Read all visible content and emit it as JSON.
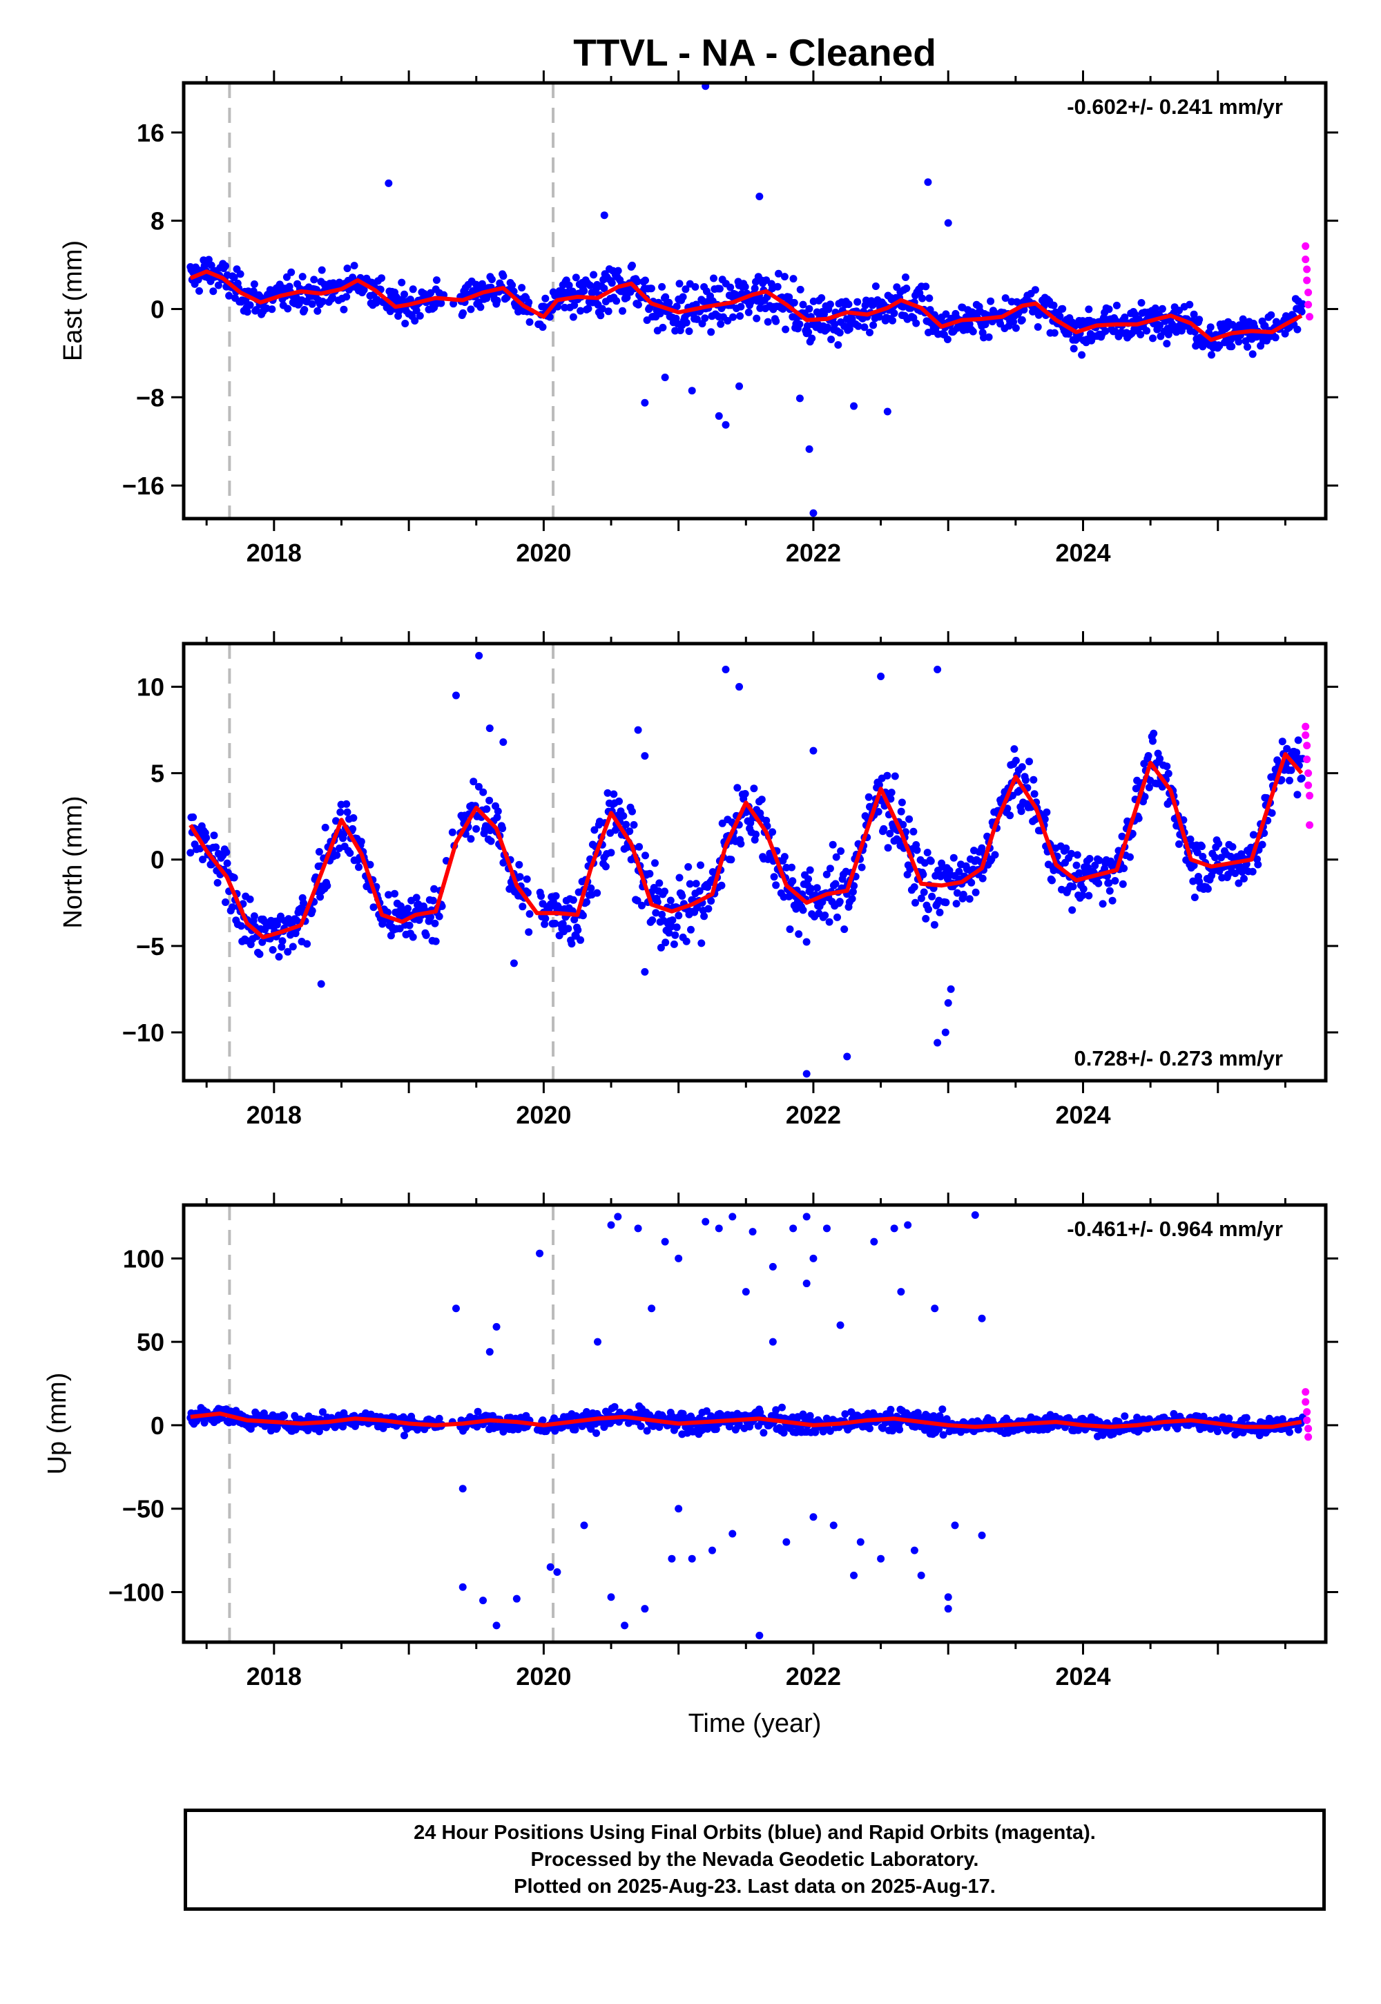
{
  "title": "TTVL  - NA - Cleaned",
  "colors": {
    "final": "#0000ff",
    "rapid": "#ff00ff",
    "fit": "#ff0000",
    "event": "#bbbbbb"
  },
  "footer": {
    "line1": "24 Hour Positions Using Final Orbits (blue) and Rapid Orbits (magenta).",
    "line2": "Processed by the Nevada Geodetic Laboratory.",
    "line3": "Plotted on 2025-Aug-23. Last data on 2025-Aug-17."
  },
  "chart_data": [
    {
      "type": "scatter",
      "component": "east",
      "ylabel": "East (mm)",
      "xlim": [
        2017.33,
        2025.8
      ],
      "ylim": [
        -19,
        20.5
      ],
      "xticks": [
        2018,
        2020,
        2022,
        2024
      ],
      "yticks": [
        -16,
        -8,
        0,
        8,
        16
      ],
      "rate": "-0.602+/- 0.241 mm/yr",
      "rate_position": "top-right",
      "event_lines": [
        2017.67,
        2020.07
      ],
      "fit": {
        "x": [
          2017.38,
          2017.5,
          2017.62,
          2017.75,
          2017.9,
          2018.05,
          2018.2,
          2018.35,
          2018.5,
          2018.62,
          2018.75,
          2018.9,
          2019.0,
          2019.2,
          2019.4,
          2019.55,
          2019.7,
          2019.85,
          2020.0,
          2020.1,
          2020.25,
          2020.4,
          2020.55,
          2020.65,
          2020.8,
          2021.0,
          2021.2,
          2021.4,
          2021.55,
          2021.65,
          2021.8,
          2021.95,
          2022.1,
          2022.25,
          2022.4,
          2022.55,
          2022.65,
          2022.8,
          2022.95,
          2023.1,
          2023.25,
          2023.4,
          2023.55,
          2023.65,
          2023.8,
          2023.95,
          2024.1,
          2024.25,
          2024.4,
          2024.55,
          2024.65,
          2024.8,
          2024.95,
          2025.1,
          2025.25,
          2025.4,
          2025.5,
          2025.62
        ],
        "y": [
          2.8,
          3.4,
          2.8,
          1.5,
          0.6,
          1.2,
          1.6,
          1.4,
          1.8,
          2.6,
          1.7,
          0.2,
          0.4,
          1.0,
          0.8,
          1.5,
          1.9,
          0.3,
          -0.7,
          0.8,
          1.1,
          1.0,
          2.0,
          2.3,
          0.5,
          -0.3,
          0.2,
          0.6,
          1.3,
          1.6,
          0.4,
          -1.0,
          -0.9,
          -0.3,
          -0.5,
          0.1,
          0.8,
          0.1,
          -1.6,
          -1.0,
          -0.9,
          -0.7,
          0.3,
          0.5,
          -1.0,
          -2.1,
          -1.5,
          -1.4,
          -1.4,
          -0.9,
          -0.6,
          -1.3,
          -2.8,
          -2.2,
          -2.0,
          -2.1,
          -1.4,
          -0.6
        ]
      },
      "outliers": [
        [
          2018.85,
          11.4
        ],
        [
          2020.75,
          -8.5
        ],
        [
          2021.3,
          -9.7
        ],
        [
          2021.35,
          -10.5
        ],
        [
          2021.45,
          -7.0
        ],
        [
          2021.6,
          10.2
        ],
        [
          2021.97,
          -12.7
        ],
        [
          2022.0,
          -18.5
        ],
        [
          2022.3,
          -8.8
        ],
        [
          2022.85,
          11.5
        ],
        [
          2023.0,
          7.8
        ],
        [
          2020.45,
          8.5
        ],
        [
          2021.1,
          -7.4
        ],
        [
          2020.9,
          -6.2
        ],
        [
          2021.9,
          -8.1
        ],
        [
          2022.55,
          -9.3
        ],
        [
          2021.2,
          20.2
        ]
      ],
      "rapid": [
        [
          2025.65,
          5.7
        ],
        [
          2025.65,
          4.5
        ],
        [
          2025.66,
          3.6
        ],
        [
          2025.66,
          2.6
        ],
        [
          2025.67,
          1.5
        ],
        [
          2025.67,
          0.4
        ],
        [
          2025.68,
          -0.7
        ]
      ]
    },
    {
      "type": "scatter",
      "component": "north",
      "ylabel": "North (mm)",
      "xlim": [
        2017.33,
        2025.8
      ],
      "ylim": [
        -12.8,
        12.5
      ],
      "xticks": [
        2018,
        2020,
        2022,
        2024
      ],
      "yticks": [
        -10,
        -5,
        0,
        5,
        10
      ],
      "rate": "0.728+/- 0.273 mm/yr",
      "rate_position": "bottom-right",
      "event_lines": [
        2017.67,
        2020.07
      ],
      "fit": {
        "x": [
          2017.38,
          2017.5,
          2017.65,
          2017.8,
          2017.92,
          2018.05,
          2018.2,
          2018.35,
          2018.5,
          2018.65,
          2018.8,
          2018.95,
          2019.05,
          2019.2,
          2019.35,
          2019.5,
          2019.65,
          2019.8,
          2019.95,
          2020.1,
          2020.25,
          2020.35,
          2020.5,
          2020.65,
          2020.8,
          2020.95,
          2021.1,
          2021.25,
          2021.35,
          2021.5,
          2021.65,
          2021.8,
          2021.95,
          2022.1,
          2022.25,
          2022.35,
          2022.5,
          2022.65,
          2022.8,
          2022.95,
          2023.1,
          2023.25,
          2023.35,
          2023.5,
          2023.65,
          2023.8,
          2023.95,
          2024.1,
          2024.25,
          2024.35,
          2024.5,
          2024.65,
          2024.8,
          2024.95,
          2025.1,
          2025.25,
          2025.35,
          2025.5,
          2025.62
        ],
        "y": [
          2.0,
          0.5,
          -1.0,
          -3.7,
          -4.5,
          -4.2,
          -3.8,
          -0.8,
          2.3,
          0.3,
          -3.2,
          -3.6,
          -3.2,
          -3.0,
          1.0,
          3.0,
          1.8,
          -1.5,
          -3.1,
          -3.1,
          -3.2,
          -0.5,
          2.7,
          0.9,
          -2.6,
          -3.0,
          -2.6,
          -2.0,
          0.8,
          3.3,
          1.6,
          -1.5,
          -2.5,
          -2.0,
          -1.8,
          0.6,
          4.1,
          1.6,
          -1.4,
          -1.5,
          -1.3,
          -0.5,
          2.0,
          4.8,
          3.0,
          -0.3,
          -1.2,
          -0.9,
          -0.6,
          1.9,
          5.6,
          4.0,
          0.0,
          -0.4,
          -0.2,
          0.0,
          2.5,
          6.1,
          5.0
        ]
      },
      "outliers": [
        [
          2019.35,
          9.5
        ],
        [
          2019.52,
          11.8
        ],
        [
          2020.7,
          7.5
        ],
        [
          2020.75,
          6.0
        ],
        [
          2021.35,
          11.0
        ],
        [
          2021.45,
          10.0
        ],
        [
          2021.95,
          -12.4
        ],
        [
          2022.0,
          6.3
        ],
        [
          2022.25,
          -11.4
        ],
        [
          2022.5,
          10.6
        ],
        [
          2022.92,
          11.0
        ],
        [
          2022.92,
          -10.6
        ],
        [
          2022.98,
          -10.0
        ],
        [
          2023.0,
          -8.3
        ],
        [
          2023.02,
          -7.5
        ],
        [
          2018.35,
          -7.2
        ],
        [
          2019.78,
          -6.0
        ],
        [
          2020.75,
          -6.5
        ],
        [
          2019.6,
          7.6
        ],
        [
          2019.7,
          6.8
        ]
      ],
      "rapid": [
        [
          2025.65,
          7.7
        ],
        [
          2025.65,
          7.2
        ],
        [
          2025.66,
          6.6
        ],
        [
          2025.66,
          5.8
        ],
        [
          2025.67,
          5.0
        ],
        [
          2025.67,
          4.3
        ],
        [
          2025.68,
          3.7
        ],
        [
          2025.68,
          2.0
        ]
      ]
    },
    {
      "type": "scatter",
      "component": "up",
      "ylabel": "Up (mm)",
      "xlabel": "Time (year)",
      "xlim": [
        2017.33,
        2025.8
      ],
      "ylim": [
        -130,
        132
      ],
      "xticks": [
        2018,
        2020,
        2022,
        2024
      ],
      "yticks": [
        -100,
        -50,
        0,
        50,
        100
      ],
      "rate": "-0.461+/- 0.964 mm/yr",
      "rate_position": "top-right",
      "event_lines": [
        2017.67,
        2020.07
      ],
      "fit": {
        "x": [
          2017.38,
          2017.6,
          2017.8,
          2018.0,
          2018.2,
          2018.4,
          2018.6,
          2018.8,
          2019.0,
          2019.2,
          2019.4,
          2019.6,
          2019.8,
          2020.0,
          2020.2,
          2020.4,
          2020.6,
          2020.8,
          2021.0,
          2021.2,
          2021.4,
          2021.6,
          2021.8,
          2022.0,
          2022.2,
          2022.4,
          2022.6,
          2022.8,
          2023.0,
          2023.2,
          2023.4,
          2023.6,
          2023.8,
          2024.0,
          2024.2,
          2024.4,
          2024.6,
          2024.8,
          2025.0,
          2025.2,
          2025.4,
          2025.62
        ],
        "y": [
          5,
          7,
          3,
          2,
          1,
          2,
          4,
          3,
          1,
          0,
          1,
          3,
          2,
          0,
          2,
          4,
          5,
          3,
          1,
          2,
          3,
          4,
          2,
          0,
          1,
          3,
          4,
          2,
          0,
          -1,
          0,
          1,
          2,
          0,
          -1,
          0,
          2,
          3,
          1,
          -1,
          -1,
          2
        ]
      },
      "outliers": [
        [
          2019.35,
          70
        ],
        [
          2019.4,
          -38
        ],
        [
          2019.4,
          -97
        ],
        [
          2019.55,
          -105
        ],
        [
          2019.6,
          44
        ],
        [
          2019.65,
          59
        ],
        [
          2019.65,
          -120
        ],
        [
          2019.8,
          -104
        ],
        [
          2019.97,
          103
        ],
        [
          2020.05,
          -85
        ],
        [
          2020.1,
          -88
        ],
        [
          2020.5,
          120
        ],
        [
          2020.55,
          125
        ],
        [
          2020.7,
          118
        ],
        [
          2020.75,
          -110
        ],
        [
          2020.9,
          110
        ],
        [
          2021.0,
          100
        ],
        [
          2021.2,
          122
        ],
        [
          2021.3,
          118
        ],
        [
          2021.4,
          125
        ],
        [
          2021.55,
          116
        ],
        [
          2021.6,
          -126
        ],
        [
          2021.7,
          95
        ],
        [
          2021.85,
          118
        ],
        [
          2021.95,
          125
        ],
        [
          2022.0,
          100
        ],
        [
          2022.1,
          118
        ],
        [
          2022.3,
          -90
        ],
        [
          2022.45,
          110
        ],
        [
          2022.6,
          118
        ],
        [
          2022.7,
          120
        ],
        [
          2022.9,
          70
        ],
        [
          2023.0,
          -110
        ],
        [
          2023.0,
          -103
        ],
        [
          2023.05,
          -60
        ],
        [
          2023.2,
          126
        ],
        [
          2023.25,
          -66
        ],
        [
          2023.25,
          64
        ],
        [
          2020.5,
          -103
        ],
        [
          2020.6,
          -120
        ],
        [
          2021.1,
          -80
        ],
        [
          2021.5,
          80
        ],
        [
          2021.8,
          -70
        ],
        [
          2022.2,
          60
        ],
        [
          2022.5,
          -80
        ],
        [
          2022.8,
          -90
        ],
        [
          2020.3,
          -60
        ],
        [
          2020.4,
          50
        ],
        [
          2020.8,
          70
        ],
        [
          2021.0,
          -50
        ],
        [
          2021.4,
          -65
        ],
        [
          2021.7,
          50
        ],
        [
          2022.0,
          -55
        ],
        [
          2022.35,
          -70
        ],
        [
          2022.65,
          80
        ],
        [
          2022.75,
          -75
        ],
        [
          2020.95,
          -80
        ],
        [
          2021.25,
          -75
        ],
        [
          2021.95,
          85
        ],
        [
          2022.15,
          -60
        ]
      ],
      "rapid": [
        [
          2025.65,
          20
        ],
        [
          2025.65,
          14
        ],
        [
          2025.66,
          8
        ],
        [
          2025.66,
          3
        ],
        [
          2025.67,
          -2
        ],
        [
          2025.67,
          -7
        ]
      ]
    }
  ]
}
